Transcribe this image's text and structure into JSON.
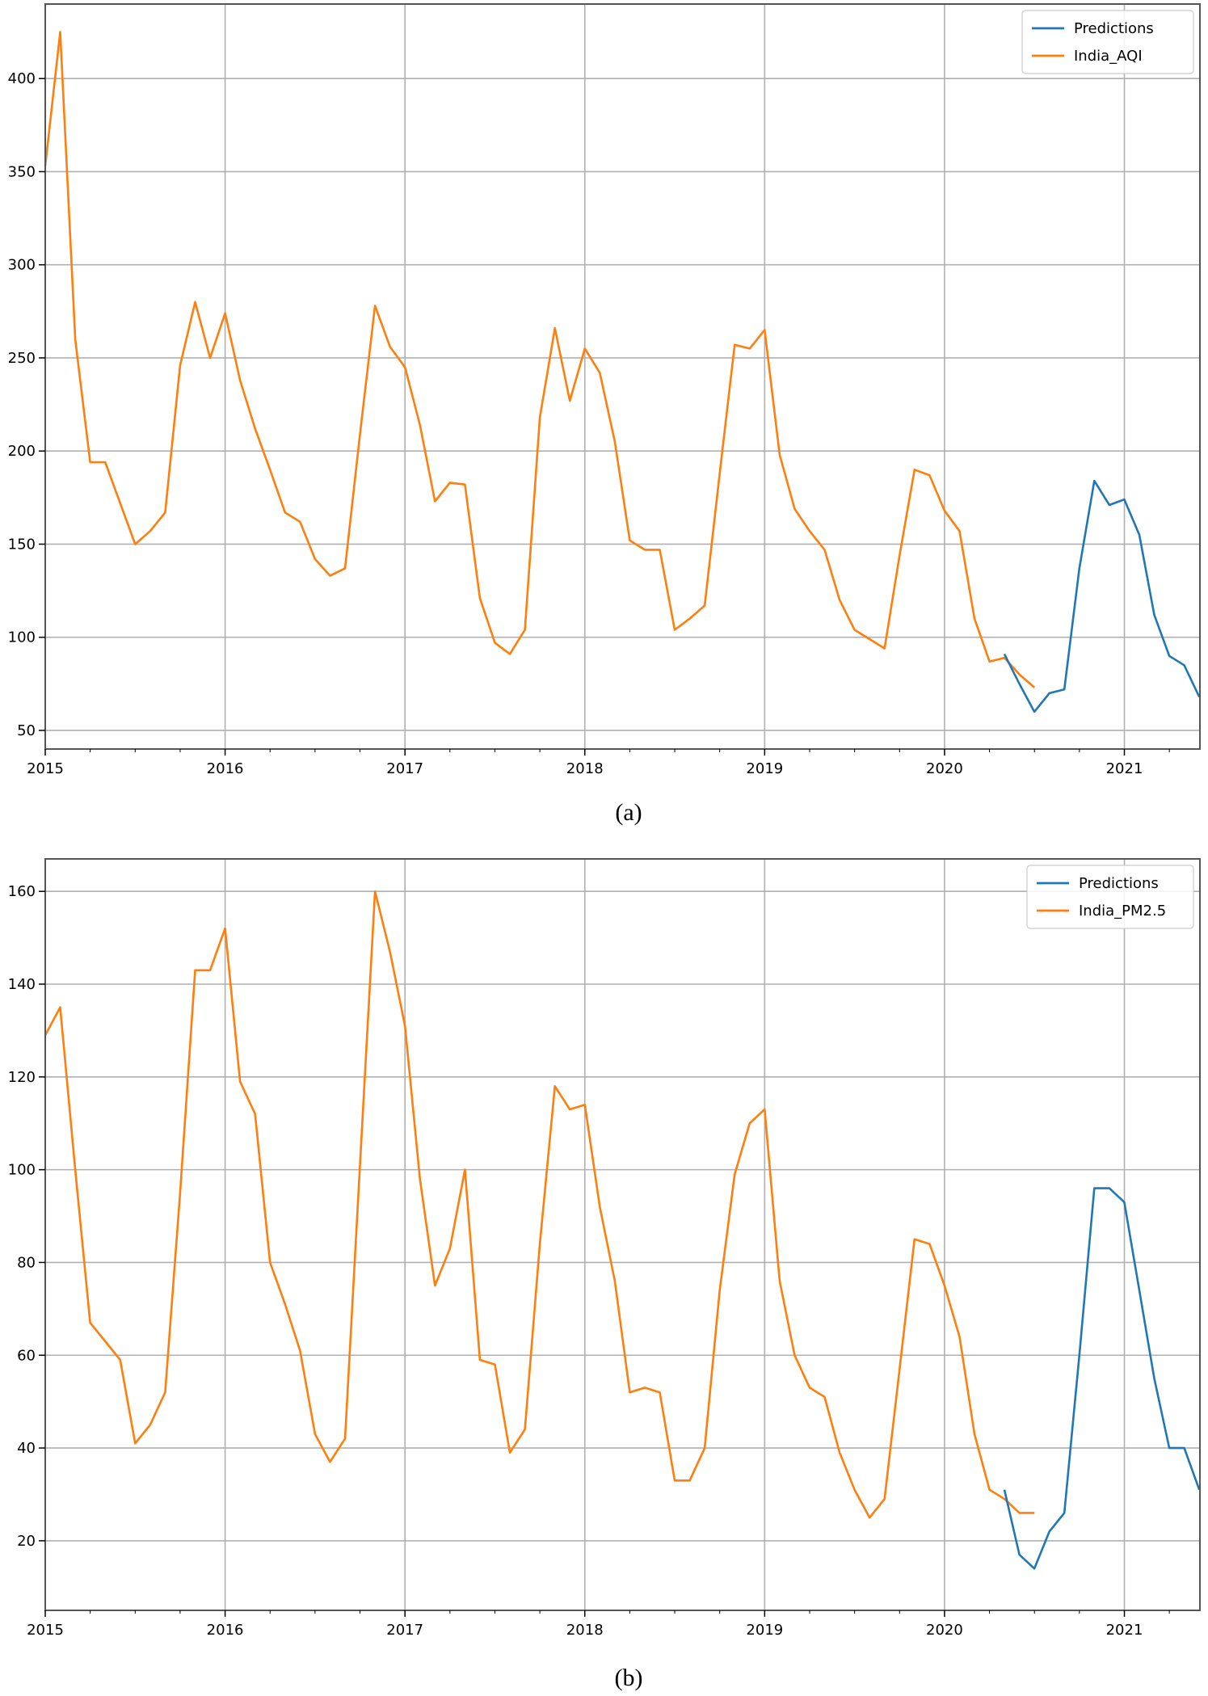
{
  "colors": {
    "predictions": "#1f77b4",
    "actual": "#ff7f0e",
    "grid": "#b0b0b0",
    "frame": "#555555"
  },
  "chart_data": [
    {
      "type": "line",
      "caption": "(a)",
      "legend_placement": "top-right",
      "grid": true,
      "xlim": [
        2015.0,
        2021.42
      ],
      "ylim": [
        40,
        440
      ],
      "xticks": [
        2015,
        2016,
        2017,
        2018,
        2019,
        2020,
        2021
      ],
      "xtick_labels": [
        "2015",
        "2016",
        "2017",
        "2018",
        "2019",
        "2020",
        "2021"
      ],
      "yticks": [
        50,
        100,
        150,
        200,
        250,
        300,
        350,
        400
      ],
      "ytick_labels": [
        "50",
        "100",
        "150",
        "200",
        "250",
        "300",
        "350",
        "400"
      ],
      "series": [
        {
          "name": "Predictions",
          "color_key": "predictions",
          "start": 2020.333,
          "values": [
            91,
            75,
            60,
            70,
            72,
            137,
            184,
            171,
            174,
            155,
            112,
            90,
            85,
            68
          ]
        },
        {
          "name": "India_AQI",
          "color_key": "actual",
          "start": 2015.0,
          "values": [
            353,
            425,
            260,
            194,
            194,
            172,
            150,
            157,
            167,
            246,
            280,
            250,
            274,
            238,
            212,
            190,
            167,
            162,
            142,
            133,
            137,
            209,
            278,
            256,
            245,
            214,
            173,
            183,
            182,
            121,
            97,
            91,
            104,
            218,
            266,
            227,
            255,
            242,
            205,
            152,
            147,
            147,
            104,
            110,
            117,
            188,
            257,
            255,
            265,
            198,
            169,
            157,
            147,
            120,
            104,
            99,
            94,
            144,
            190,
            187,
            168,
            157,
            110,
            87,
            89,
            80,
            73
          ]
        }
      ]
    },
    {
      "type": "line",
      "caption": "(b)",
      "legend_placement": "top-right",
      "grid": true,
      "xlim": [
        2015.0,
        2021.42
      ],
      "ylim": [
        5,
        167
      ],
      "xticks": [
        2015,
        2016,
        2017,
        2018,
        2019,
        2020,
        2021
      ],
      "xtick_labels": [
        "2015",
        "2016",
        "2017",
        "2018",
        "2019",
        "2020",
        "2021"
      ],
      "yticks": [
        20,
        40,
        60,
        80,
        100,
        120,
        140,
        160
      ],
      "ytick_labels": [
        "20",
        "40",
        "60",
        "80",
        "100",
        "120",
        "140",
        "160"
      ],
      "series": [
        {
          "name": "Predictions",
          "color_key": "predictions",
          "start": 2020.333,
          "values": [
            31,
            17,
            14,
            22,
            26,
            60,
            96,
            96,
            93,
            74,
            55,
            40,
            40,
            31
          ]
        },
        {
          "name": "India_PM2.5",
          "color_key": "actual",
          "start": 2015.0,
          "values": [
            129,
            135,
            100,
            67,
            63,
            59,
            41,
            45,
            52,
            95,
            143,
            143,
            152,
            119,
            112,
            80,
            71,
            61,
            43,
            37,
            42,
            101,
            160,
            147,
            131,
            98,
            75,
            83,
            100,
            59,
            58,
            39,
            44,
            84,
            118,
            113,
            114,
            92,
            76,
            52,
            53,
            52,
            33,
            33,
            40,
            74,
            99,
            110,
            113,
            76,
            60,
            53,
            51,
            39,
            31,
            25,
            29,
            57,
            85,
            84,
            75,
            64,
            43,
            31,
            29,
            26,
            26
          ]
        }
      ]
    }
  ]
}
